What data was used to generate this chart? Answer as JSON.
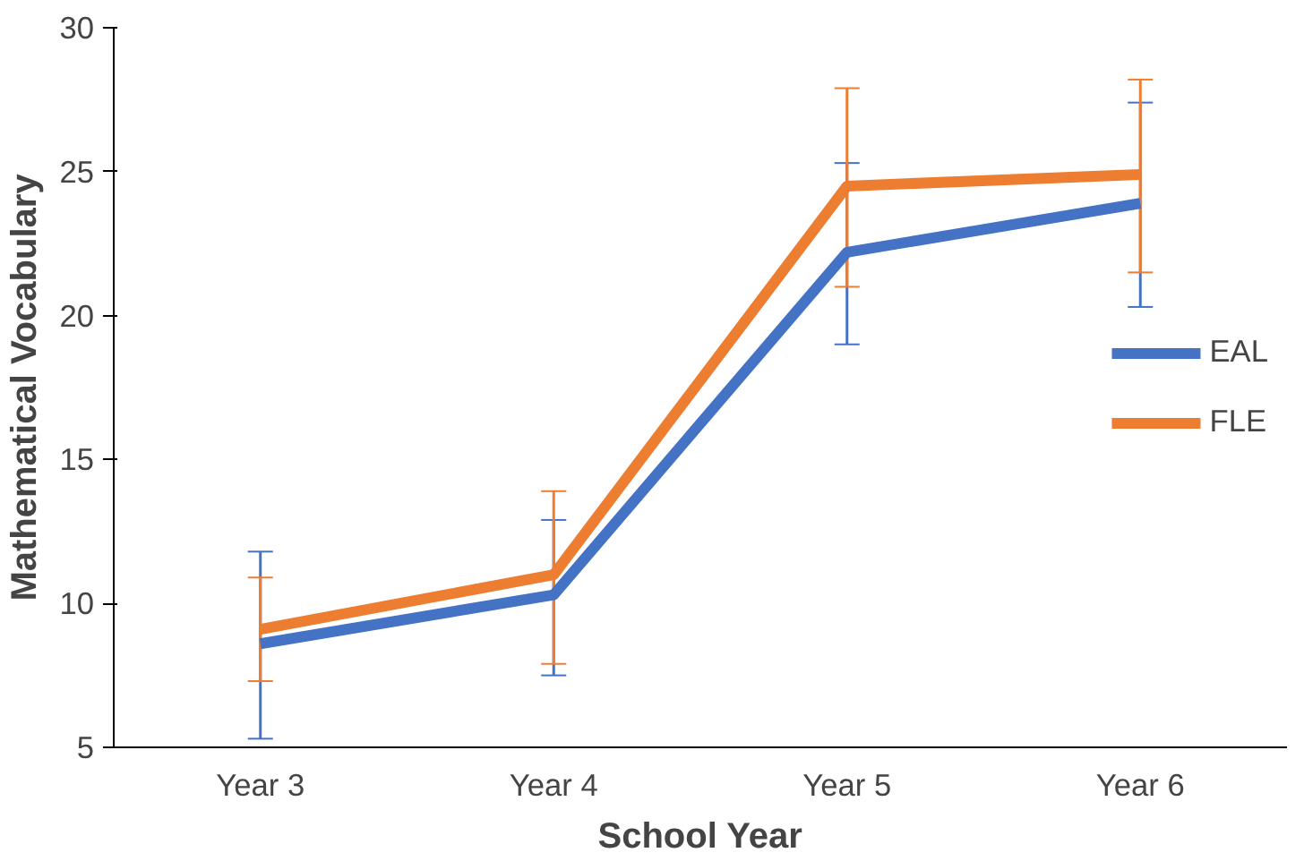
{
  "chart_data": {
    "type": "line",
    "xlabel": "School Year",
    "ylabel": "Mathematical Vocabulary",
    "categories": [
      "Year 3",
      "Year 4",
      "Year 5",
      "Year 6"
    ],
    "series": [
      {
        "name": "EAL",
        "color": "#4472c4",
        "values": [
          8.6,
          10.3,
          22.2,
          23.9
        ],
        "errors": [
          [
            5.3,
            11.8
          ],
          [
            7.5,
            12.9
          ],
          [
            19.0,
            25.3
          ],
          [
            20.3,
            27.4
          ]
        ]
      },
      {
        "name": "FLE",
        "color": "#ed7d31",
        "values": [
          9.1,
          11.0,
          24.5,
          24.9
        ],
        "errors": [
          [
            7.3,
            10.9
          ],
          [
            7.9,
            13.9
          ],
          [
            21.0,
            27.9
          ],
          [
            21.5,
            28.2
          ]
        ]
      }
    ],
    "ylim": [
      5,
      30
    ],
    "yticks": [
      5,
      10,
      15,
      20,
      25,
      30
    ],
    "grid": false,
    "legend": "right",
    "marker": "none",
    "line_style": "solid"
  }
}
